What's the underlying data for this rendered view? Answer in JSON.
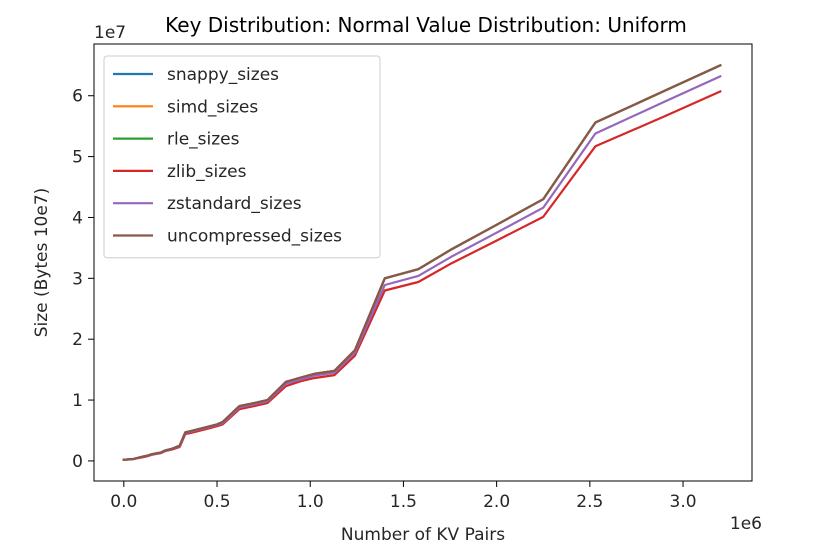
{
  "chart_data": {
    "type": "line",
    "title": "Key Distribution: Normal Value Distribution: Uniform",
    "xlabel": "Number of KV Pairs",
    "ylabel": "Size (Bytes 10e7)",
    "x_offset_label": "1e6",
    "y_offset_label": "1e7",
    "xlim": [
      -0.16,
      3.37
    ],
    "ylim": [
      -0.33,
      6.85
    ],
    "xticks": [
      0.0,
      0.5,
      1.0,
      1.5,
      2.0,
      2.5,
      3.0
    ],
    "xtick_labels": [
      "0.0",
      "0.5",
      "1.0",
      "1.5",
      "2.0",
      "2.5",
      "3.0"
    ],
    "yticks": [
      0,
      1,
      2,
      3,
      4,
      5,
      6
    ],
    "ytick_labels": [
      "0",
      "1",
      "2",
      "3",
      "4",
      "5",
      "6"
    ],
    "grid": false,
    "legend_position": "upper left",
    "x": [
      0.0,
      0.05,
      0.1,
      0.13,
      0.15,
      0.2,
      0.22,
      0.26,
      0.3,
      0.33,
      0.36,
      0.45,
      0.5,
      0.53,
      0.62,
      0.7,
      0.77,
      0.87,
      0.95,
      1.02,
      1.13,
      1.24,
      1.4,
      1.58,
      1.76,
      2.0,
      2.25,
      2.53,
      2.9,
      3.2
    ],
    "series": [
      {
        "name": "snappy_sizes",
        "color": "#1f77b4",
        "values": [
          0.02,
          0.03,
          0.07,
          0.09,
          0.11,
          0.14,
          0.17,
          0.2,
          0.25,
          0.47,
          0.49,
          0.56,
          0.6,
          0.64,
          0.9,
          0.95,
          1.0,
          1.3,
          1.37,
          1.43,
          1.48,
          1.82,
          3.0,
          3.15,
          3.48,
          3.88,
          4.3,
          5.56,
          6.08,
          6.5
        ]
      },
      {
        "name": "simd_sizes",
        "color": "#ff7f0e",
        "values": [
          0.02,
          0.03,
          0.07,
          0.09,
          0.11,
          0.14,
          0.17,
          0.2,
          0.25,
          0.47,
          0.49,
          0.56,
          0.6,
          0.64,
          0.9,
          0.95,
          1.0,
          1.3,
          1.37,
          1.43,
          1.48,
          1.82,
          3.0,
          3.15,
          3.48,
          3.88,
          4.3,
          5.56,
          6.08,
          6.5
        ]
      },
      {
        "name": "rle_sizes",
        "color": "#2ca02c",
        "values": [
          0.02,
          0.03,
          0.07,
          0.09,
          0.11,
          0.14,
          0.17,
          0.2,
          0.25,
          0.47,
          0.49,
          0.56,
          0.6,
          0.64,
          0.9,
          0.95,
          1.0,
          1.3,
          1.37,
          1.43,
          1.48,
          1.82,
          3.0,
          3.15,
          3.48,
          3.88,
          4.3,
          5.56,
          6.08,
          6.5
        ]
      },
      {
        "name": "zlib_sizes",
        "color": "#d62728",
        "values": [
          0.02,
          0.03,
          0.06,
          0.08,
          0.1,
          0.13,
          0.16,
          0.19,
          0.23,
          0.44,
          0.46,
          0.53,
          0.57,
          0.6,
          0.85,
          0.9,
          0.95,
          1.23,
          1.31,
          1.36,
          1.41,
          1.73,
          2.8,
          2.94,
          3.25,
          3.62,
          4.01,
          5.17,
          5.66,
          6.07
        ]
      },
      {
        "name": "zstandard_sizes",
        "color": "#9467bd",
        "values": [
          0.02,
          0.03,
          0.07,
          0.09,
          0.1,
          0.14,
          0.16,
          0.2,
          0.24,
          0.46,
          0.48,
          0.55,
          0.59,
          0.62,
          0.88,
          0.93,
          0.98,
          1.27,
          1.34,
          1.4,
          1.45,
          1.78,
          2.89,
          3.04,
          3.36,
          3.75,
          4.16,
          5.38,
          5.9,
          6.32
        ]
      },
      {
        "name": "uncompressed_sizes",
        "color": "#8c564b",
        "values": [
          0.02,
          0.03,
          0.07,
          0.09,
          0.11,
          0.14,
          0.17,
          0.2,
          0.25,
          0.47,
          0.49,
          0.56,
          0.6,
          0.64,
          0.9,
          0.95,
          1.0,
          1.3,
          1.37,
          1.43,
          1.48,
          1.82,
          3.0,
          3.15,
          3.48,
          3.88,
          4.3,
          5.56,
          6.08,
          6.5
        ]
      }
    ]
  }
}
